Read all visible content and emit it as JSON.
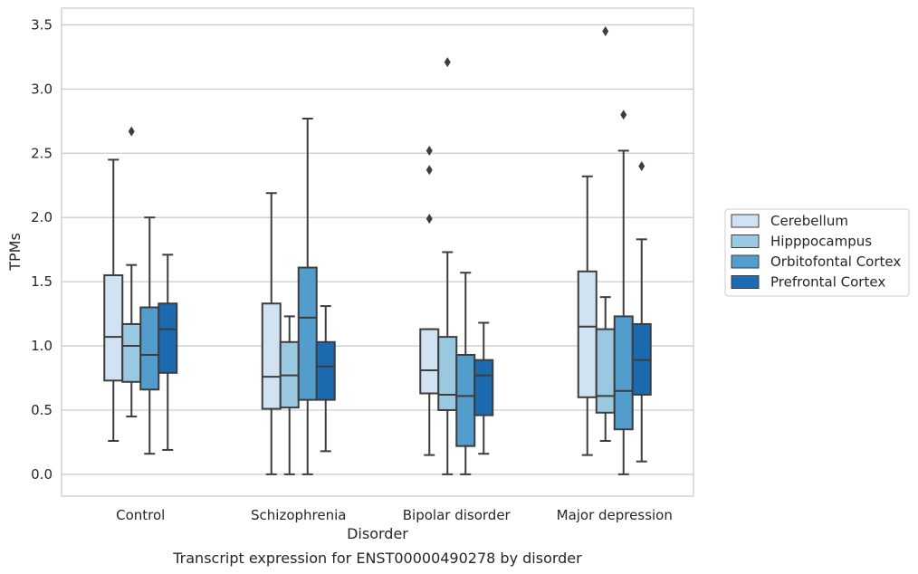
{
  "chart_data": {
    "type": "boxplot",
    "title": "",
    "caption": "Transcript expression for ENST00000490278 by disorder",
    "xlabel": "Disorder",
    "ylabel": "TPMs",
    "ylim": [
      -0.17,
      3.63
    ],
    "yticks": [
      "0.0",
      "0.5",
      "1.0",
      "1.5",
      "2.0",
      "2.5",
      "3.0",
      "3.5"
    ],
    "categories": [
      "Control",
      "Schizophrenia",
      "Bipolar disorder",
      "Major depression"
    ],
    "grid": "horizontal",
    "legend_position": "right",
    "series": [
      {
        "name": "Cerebellum",
        "color": "#d1e2f3",
        "boxes": [
          {
            "whislo": 0.26,
            "q1": 0.73,
            "med": 1.07,
            "q3": 1.55,
            "whishi": 2.45,
            "fliers": []
          },
          {
            "whislo": 0.0,
            "q1": 0.51,
            "med": 0.76,
            "q3": 1.33,
            "whishi": 2.19,
            "fliers": []
          },
          {
            "whislo": 0.15,
            "q1": 0.63,
            "med": 0.81,
            "q3": 1.13,
            "whishi": 1.13,
            "fliers": [
              1.99,
              2.37,
              2.52
            ]
          },
          {
            "whislo": 0.15,
            "q1": 0.6,
            "med": 1.15,
            "q3": 1.58,
            "whishi": 2.32,
            "fliers": []
          }
        ]
      },
      {
        "name": "Hipppocampus",
        "color": "#9ac8e0",
        "boxes": [
          {
            "whislo": 0.45,
            "q1": 0.72,
            "med": 1.0,
            "q3": 1.17,
            "whishi": 1.63,
            "fliers": [
              2.67
            ]
          },
          {
            "whislo": 0.0,
            "q1": 0.52,
            "med": 0.77,
            "q3": 1.03,
            "whishi": 1.23,
            "fliers": []
          },
          {
            "whislo": 0.0,
            "q1": 0.5,
            "med": 0.62,
            "q3": 1.07,
            "whishi": 1.73,
            "fliers": [
              3.21
            ]
          },
          {
            "whislo": 0.26,
            "q1": 0.48,
            "med": 0.61,
            "q3": 1.13,
            "whishi": 1.38,
            "fliers": [
              3.45
            ]
          }
        ]
      },
      {
        "name": "Orbitofontal Cortex",
        "color": "#529dcc",
        "boxes": [
          {
            "whislo": 0.16,
            "q1": 0.66,
            "med": 0.93,
            "q3": 1.3,
            "whishi": 2.0,
            "fliers": []
          },
          {
            "whislo": 0.0,
            "q1": 0.58,
            "med": 1.22,
            "q3": 1.61,
            "whishi": 2.77,
            "fliers": []
          },
          {
            "whislo": 0.0,
            "q1": 0.22,
            "med": 0.61,
            "q3": 0.93,
            "whishi": 1.57,
            "fliers": []
          },
          {
            "whislo": 0.0,
            "q1": 0.35,
            "med": 0.65,
            "q3": 1.23,
            "whishi": 2.52,
            "fliers": [
              2.8
            ]
          }
        ]
      },
      {
        "name": "Prefrontal Cortex",
        "color": "#1c6aaf",
        "boxes": [
          {
            "whislo": 0.19,
            "q1": 0.79,
            "med": 1.13,
            "q3": 1.33,
            "whishi": 1.71,
            "fliers": []
          },
          {
            "whislo": 0.18,
            "q1": 0.58,
            "med": 0.84,
            "q3": 1.03,
            "whishi": 1.31,
            "fliers": []
          },
          {
            "whislo": 0.16,
            "q1": 0.46,
            "med": 0.77,
            "q3": 0.89,
            "whishi": 1.18,
            "fliers": []
          },
          {
            "whislo": 0.1,
            "q1": 0.62,
            "med": 0.89,
            "q3": 1.17,
            "whishi": 1.83,
            "fliers": [
              2.4
            ]
          }
        ]
      }
    ]
  }
}
